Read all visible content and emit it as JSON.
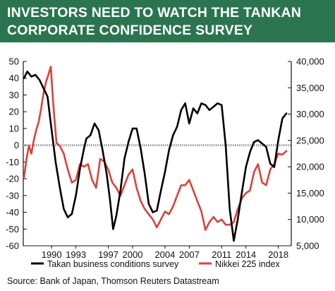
{
  "header": {
    "title_line1": "INVESTORS NEED TO WATCH THE TANKAN",
    "title_line2": "CORPORATE CONFIDENCE SURVEY"
  },
  "source": "Source: Bank of Japan, Thomson Reuters Datastream",
  "colors": {
    "header_bg": "#2a7550",
    "tankan": "#000000",
    "nikkei": "#d9433a",
    "zero_line": "#999999"
  },
  "chart_data": {
    "type": "line",
    "title": "INVESTORS NEED TO WATCH THE TANKAN CORPORATE CONFIDENCE SURVEY",
    "x_tick_labels": [
      "1990",
      "1993",
      "1997",
      "2000",
      "2004",
      "2007",
      "2011",
      "2014",
      "2018"
    ],
    "x_tick_values": [
      1990,
      1993,
      1997,
      2000,
      2004,
      2007,
      2011,
      2014,
      2018
    ],
    "xlim": [
      1986.5,
      2019.6
    ],
    "y_left": {
      "lim": [
        -60,
        50
      ],
      "ticks": [
        50,
        40,
        30,
        20,
        10,
        0,
        -10,
        -20,
        -30,
        -40,
        -50,
        -60
      ],
      "tick_labels": [
        "50",
        "40",
        "30",
        "20",
        "10",
        "0",
        "-10",
        "-20",
        "-30",
        "-40",
        "-50",
        "-60"
      ]
    },
    "y_right": {
      "lim": [
        5000,
        40000
      ],
      "ticks": [
        40000,
        35000,
        30000,
        25000,
        20000,
        15000,
        10000,
        5000
      ],
      "tick_labels": [
        "40,000",
        "35,000",
        "30,000",
        "25,000",
        "20,000",
        "15,000",
        "10,000",
        "5,000"
      ]
    },
    "legend_placement": "bottom",
    "series": [
      {
        "name": "Takan business conditions survey",
        "axis": "left",
        "color": "#000000",
        "x": [
          1986.6,
          1987.0,
          1987.5,
          1988.0,
          1988.5,
          1989.0,
          1989.5,
          1990.0,
          1990.5,
          1991.0,
          1991.5,
          1992.0,
          1992.5,
          1993.0,
          1993.5,
          1994.0,
          1994.3,
          1994.8,
          1995.3,
          1995.8,
          1996.3,
          1996.8,
          1997.2,
          1997.6,
          1998.0,
          1998.5,
          1999.0,
          1999.5,
          2000.0,
          2000.5,
          2001.0,
          2001.5,
          2002.0,
          2002.5,
          2003.0,
          2003.5,
          2004.0,
          2004.5,
          2005.0,
          2005.5,
          2006.0,
          2006.5,
          2007.0,
          2007.5,
          2008.0,
          2008.5,
          2009.0,
          2009.5,
          2010.0,
          2010.5,
          2011.0,
          2011.5,
          2012.0,
          2012.5,
          2013.0,
          2013.5,
          2014.0,
          2014.5,
          2015.0,
          2015.5,
          2016.0,
          2016.5,
          2017.0,
          2017.5,
          2018.0,
          2018.5,
          2019.0
        ],
        "y": [
          40,
          44,
          41,
          42,
          39,
          34,
          29,
          9,
          -10,
          -25,
          -38,
          -43,
          -41,
          -30,
          -14,
          -2,
          4,
          6,
          13,
          9,
          -3,
          -17,
          -32,
          -50,
          -42,
          -27,
          -8,
          2,
          10,
          10,
          -2,
          -17,
          -35,
          -40,
          -39,
          -27,
          -16,
          -3,
          6,
          11,
          21,
          25,
          13,
          22,
          19,
          25,
          24,
          21,
          23,
          25,
          24,
          0,
          -38,
          -57,
          -44,
          -28,
          -13,
          -4,
          2,
          3,
          1,
          -1,
          -11,
          -13,
          3,
          16,
          19
        ]
      },
      {
        "name": "Nikkei 225 index",
        "axis": "right",
        "color": "#d9433a",
        "x": [
          1986.6,
          1986.9,
          1987.2,
          1987.5,
          1987.8,
          1988.1,
          1988.4,
          1988.7,
          1989.0,
          1989.3,
          1989.6,
          1989.9,
          1990.2,
          1990.6,
          1991.0,
          1991.5,
          1992.0,
          1992.5,
          1993.0,
          1993.5,
          1994.0,
          1994.5,
          1995.0,
          1995.5,
          1996.0,
          1996.5,
          1997.0,
          1997.5,
          1998.0,
          1998.5,
          1999.0,
          1999.5,
          2000.0,
          2000.5,
          2001.0,
          2001.5,
          2002.0,
          2002.5,
          2003.0,
          2003.5,
          2004.0,
          2004.5,
          2005.0,
          2005.5,
          2006.0,
          2006.5,
          2007.0,
          2007.5,
          2008.0,
          2008.5,
          2009.0,
          2009.5,
          2010.0,
          2010.5,
          2011.0,
          2011.5,
          2012.0,
          2012.5,
          2013.0,
          2013.5,
          2014.0,
          2014.5,
          2015.0,
          2015.5,
          2016.0,
          2016.5,
          2017.0,
          2017.5,
          2018.0,
          2018.5,
          2019.0
        ],
        "y": [
          18000,
          21500,
          24000,
          22500,
          25000,
          27000,
          28500,
          31000,
          34000,
          36000,
          37500,
          39000,
          32000,
          24500,
          24000,
          22500,
          19500,
          17000,
          17500,
          20500,
          20000,
          20500,
          17500,
          16000,
          21500,
          21000,
          19500,
          17000,
          16000,
          14500,
          16500,
          18500,
          19500,
          16000,
          13500,
          12000,
          11000,
          10000,
          8500,
          10000,
          11500,
          11000,
          12500,
          14500,
          16500,
          16500,
          17500,
          15500,
          13500,
          11500,
          8000,
          9500,
          10500,
          9500,
          10000,
          9000,
          9000,
          9500,
          12000,
          14000,
          15000,
          15500,
          19000,
          20500,
          17000,
          16500,
          19500,
          20500,
          22500,
          22300,
          23000
        ]
      }
    ]
  }
}
